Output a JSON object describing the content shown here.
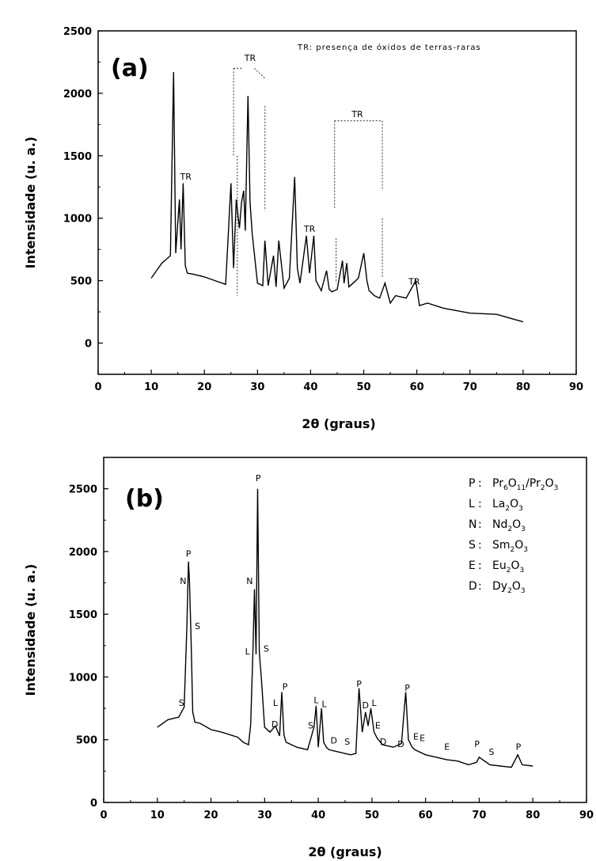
{
  "chart_data": [
    {
      "panel": "(a)",
      "type": "line",
      "xlabel": "2θ (graus)",
      "ylabel": "Intensidade (u. a.)",
      "xlim": [
        0,
        90
      ],
      "ylim": [
        -250,
        2500
      ],
      "xticks": [
        0,
        10,
        20,
        30,
        40,
        50,
        60,
        70,
        80,
        90
      ],
      "yticks": [
        0,
        500,
        1000,
        1500,
        2000,
        2500
      ],
      "note": "TR:  presença de óxidos de terras-raras",
      "series": [
        {
          "x": [
            10,
            12,
            13.6,
            14.2,
            14.6,
            15.3,
            15.6,
            16,
            16.4,
            16.8,
            18,
            20,
            22,
            24,
            25,
            25.5,
            26,
            26.6,
            27,
            27.4,
            27.7,
            28.2,
            28.6,
            29,
            30,
            31,
            31.4,
            32,
            33,
            33.5,
            34,
            35,
            36,
            37,
            37.5,
            38,
            39.2,
            39.8,
            40.6,
            41,
            42,
            43,
            43.5,
            44,
            45,
            46,
            46.3,
            46.8,
            47.2,
            48,
            49,
            50,
            50.6,
            51,
            52,
            53,
            54,
            55,
            56,
            58,
            59.8,
            60.5,
            62,
            65,
            70,
            75,
            80
          ],
          "y": [
            520,
            640,
            700,
            2170,
            720,
            1150,
            750,
            1280,
            620,
            560,
            550,
            530,
            500,
            470,
            1280,
            600,
            1150,
            920,
            1130,
            1220,
            900,
            1980,
            1130,
            880,
            480,
            460,
            820,
            460,
            700,
            450,
            820,
            440,
            520,
            1330,
            600,
            480,
            860,
            560,
            860,
            500,
            420,
            580,
            430,
            410,
            430,
            660,
            480,
            640,
            450,
            480,
            520,
            720,
            500,
            420,
            380,
            360,
            480,
            320,
            380,
            360,
            500,
            300,
            320,
            280,
            240,
            230,
            170
          ]
        }
      ],
      "annotations": [
        {
          "text": "TR",
          "x": 16.5,
          "y": 1310
        },
        {
          "text": "TR",
          "x": 28.6,
          "y": 2260
        },
        {
          "text": "TR",
          "x": 48.8,
          "y": 1810
        },
        {
          "text": "TR",
          "x": 39.8,
          "y": 890
        },
        {
          "text": "TR",
          "x": 59.5,
          "y": 470
        }
      ]
    },
    {
      "panel": "(b)",
      "type": "line",
      "xlabel": "2θ (graus)",
      "ylabel": "Intensidade (u. a.)",
      "xlim": [
        0,
        90
      ],
      "ylim": [
        0,
        2750
      ],
      "xticks": [
        0,
        10,
        20,
        30,
        40,
        50,
        60,
        70,
        80,
        90
      ],
      "yticks": [
        0,
        500,
        1000,
        1500,
        2000,
        2500
      ],
      "legend": [
        {
          "key": "P",
          "formula": [
            "Pr",
            "6",
            "O",
            "11",
            "/Pr",
            "2",
            "O",
            "3"
          ]
        },
        {
          "key": "L",
          "formula": [
            "La",
            "2",
            "O",
            "3"
          ]
        },
        {
          "key": "N",
          "formula": [
            "Nd",
            "2",
            "O",
            "3"
          ]
        },
        {
          "key": "S",
          "formula": [
            "Sm",
            "2",
            "O",
            "3"
          ]
        },
        {
          "key": "E",
          "formula": [
            "Eu",
            "2",
            "O",
            "3"
          ]
        },
        {
          "key": "D",
          "formula": [
            "Dy",
            "2",
            "O",
            "3"
          ]
        }
      ],
      "series": [
        {
          "x": [
            10,
            12,
            14,
            15,
            15.5,
            15.8,
            16,
            16.3,
            16.6,
            17,
            18,
            20,
            22,
            25,
            26,
            27,
            27.4,
            27.8,
            28.1,
            28.4,
            28.7,
            29,
            29.4,
            30,
            31,
            32,
            32.8,
            33.2,
            33.6,
            34,
            36,
            38,
            39.2,
            39.6,
            40,
            40.6,
            41,
            41.5,
            42,
            44,
            46,
            47,
            47.6,
            48.2,
            48.8,
            49.3,
            49.8,
            50.4,
            51,
            52,
            54,
            55.5,
            56.3,
            56.8,
            57.5,
            58,
            60,
            62,
            64,
            66,
            68,
            69.5,
            70,
            72,
            74,
            76,
            77.2,
            78,
            80
          ],
          "y": [
            600,
            660,
            680,
            760,
            1400,
            1920,
            1760,
            1280,
            720,
            640,
            630,
            580,
            560,
            520,
            480,
            460,
            620,
            1170,
            1700,
            1180,
            2500,
            1200,
            980,
            600,
            560,
            610,
            530,
            880,
            540,
            480,
            440,
            420,
            600,
            770,
            440,
            750,
            480,
            440,
            420,
            400,
            380,
            390,
            910,
            560,
            720,
            610,
            750,
            560,
            510,
            460,
            440,
            470,
            880,
            500,
            440,
            420,
            380,
            360,
            340,
            330,
            300,
            320,
            360,
            300,
            290,
            280,
            380,
            300,
            290
          ]
        }
      ],
      "annotations": [
        {
          "text": "P",
          "x": 15.8,
          "y": 1960
        },
        {
          "text": "N",
          "x": 14.8,
          "y": 1740
        },
        {
          "text": "S",
          "x": 17.5,
          "y": 1380
        },
        {
          "text": "S",
          "x": 14.5,
          "y": 770
        },
        {
          "text": "P",
          "x": 28.8,
          "y": 2560
        },
        {
          "text": "N",
          "x": 27.2,
          "y": 1740
        },
        {
          "text": "L",
          "x": 26.8,
          "y": 1180
        },
        {
          "text": "S",
          "x": 30.3,
          "y": 1200
        },
        {
          "text": "P",
          "x": 33.8,
          "y": 900
        },
        {
          "text": "L",
          "x": 32,
          "y": 770
        },
        {
          "text": "D",
          "x": 31.9,
          "y": 600
        },
        {
          "text": "S",
          "x": 38.6,
          "y": 590
        },
        {
          "text": "L",
          "x": 39.6,
          "y": 790
        },
        {
          "text": "L",
          "x": 41.1,
          "y": 760
        },
        {
          "text": "D",
          "x": 42.9,
          "y": 470
        },
        {
          "text": "S",
          "x": 45.4,
          "y": 460
        },
        {
          "text": "P",
          "x": 47.6,
          "y": 920
        },
        {
          "text": "D",
          "x": 48.8,
          "y": 750
        },
        {
          "text": "L",
          "x": 50.4,
          "y": 770
        },
        {
          "text": "E",
          "x": 51.1,
          "y": 590
        },
        {
          "text": "D",
          "x": 52.1,
          "y": 460
        },
        {
          "text": "D",
          "x": 55.4,
          "y": 440
        },
        {
          "text": "P",
          "x": 56.6,
          "y": 890
        },
        {
          "text": "E",
          "x": 58.2,
          "y": 500
        },
        {
          "text": "E",
          "x": 59.4,
          "y": 490
        },
        {
          "text": "E",
          "x": 64,
          "y": 420
        },
        {
          "text": "P",
          "x": 69.6,
          "y": 440
        },
        {
          "text": "S",
          "x": 72.3,
          "y": 380
        },
        {
          "text": "P",
          "x": 77.3,
          "y": 420
        }
      ]
    }
  ],
  "colors": {
    "line": "#000000",
    "axis": "#000000",
    "bracket": "#555555",
    "background": "#ffffff"
  }
}
